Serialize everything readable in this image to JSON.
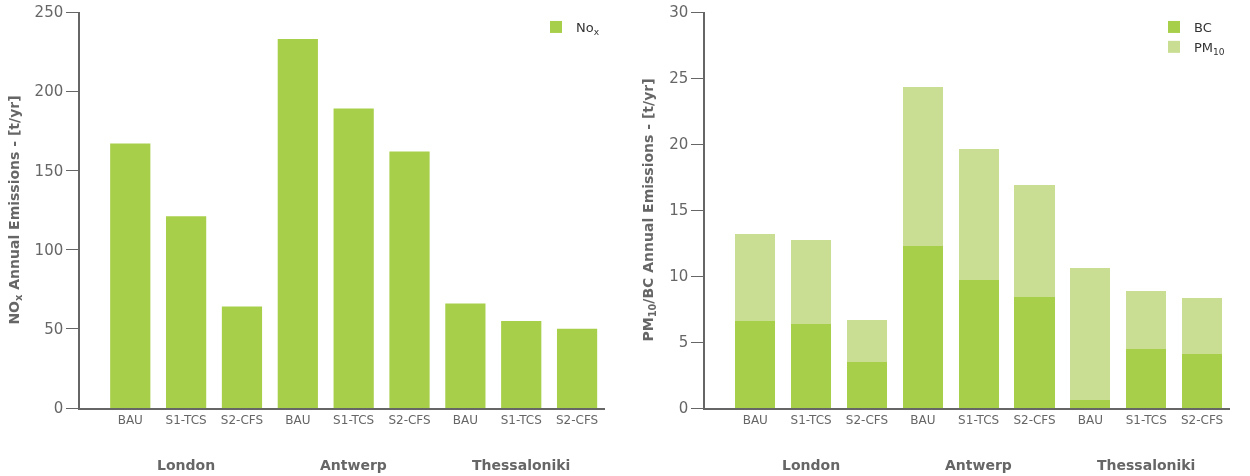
{
  "chart_data": [
    {
      "type": "bar",
      "ylabel": "NO$_{x}$ Annual Emissions - [t/yr]",
      "categories": [
        "BAU",
        "S1-TCS",
        "S2-CFS",
        "BAU",
        "S1-TCS",
        "S2-CFS",
        "BAU",
        "S1-TCS",
        "S2-CFS"
      ],
      "series": [
        {
          "name": "No$_{x}$",
          "color": "#a8cf4a",
          "values": [
            167,
            121,
            64,
            233,
            189,
            162,
            66,
            55,
            50
          ]
        }
      ],
      "annotations": [
        "London",
        "Antwerp",
        "Thessaloniki"
      ],
      "ylim": [
        0,
        250
      ],
      "yticks": [
        0,
        50,
        100,
        150,
        200,
        250
      ],
      "grid": false,
      "legend": "top right"
    },
    {
      "type": "bar",
      "stacked": true,
      "ylabel": "PM$_{10}$/BC Annual Emissions - [t/yr]",
      "categories": [
        "BAU",
        "S1-TCS",
        "S2-CFS",
        "BAU",
        "S1-TCS",
        "S2-CFS",
        "BAU",
        "S1-TCS",
        "S2-CFS"
      ],
      "series": [
        {
          "name": "BC",
          "color": "#a8cf4a",
          "values": [
            6.6,
            6.4,
            3.5,
            12.3,
            9.7,
            8.4,
            0.6,
            4.5,
            4.1
          ]
        },
        {
          "name": "PM$_{10}$",
          "color": "#c9de93",
          "values": [
            6.6,
            6.3,
            3.2,
            12.0,
            9.9,
            8.5,
            10.0,
            4.4,
            4.2
          ]
        }
      ],
      "annotations": [
        "London",
        "Antwerp",
        "Thessaloniki"
      ],
      "ylim": [
        0,
        30
      ],
      "yticks": [
        0,
        5,
        10,
        15,
        20,
        25,
        30
      ],
      "grid": false,
      "legend": "top right"
    }
  ]
}
